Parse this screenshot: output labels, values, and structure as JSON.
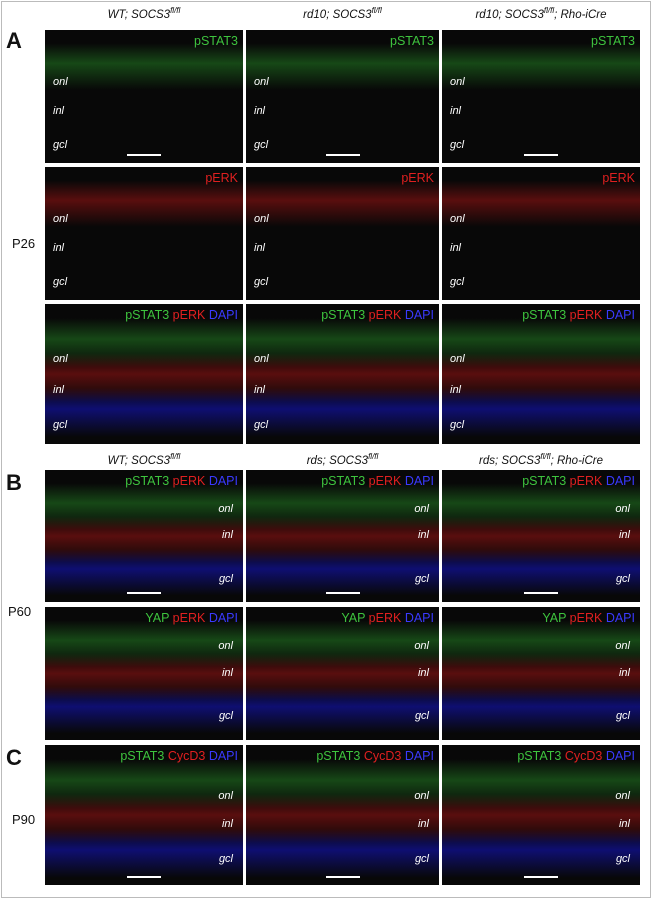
{
  "panels": [
    {
      "letter": "A",
      "row_label": "P26",
      "headers": [
        {
          "text": "WT; SOCS3",
          "sup": "fl/fl"
        },
        {
          "text": "rd10; SOCS3",
          "sup": "fl/fl"
        },
        {
          "text": "rd10; SOCS3",
          "sup": "fl/fl",
          "tail": "; Rho-iCre"
        }
      ],
      "rows": [
        {
          "tiles": [
            {
              "stain": [
                {
                  "text": "pSTAT3",
                  "color": "#3ec43e"
                }
              ],
              "layers": [
                "onl",
                "inl",
                "gcl"
              ]
            },
            {
              "stain": [
                {
                  "text": "pSTAT3",
                  "color": "#3ec43e"
                }
              ],
              "layers": [
                "onl",
                "inl",
                "gcl"
              ]
            },
            {
              "stain": [
                {
                  "text": "pSTAT3",
                  "color": "#3ec43e"
                }
              ],
              "layers": [
                "onl",
                "inl",
                "gcl"
              ]
            }
          ]
        },
        {
          "tiles": [
            {
              "stain": [
                {
                  "text": "pERK",
                  "color": "#e02020"
                }
              ],
              "layers": [
                "onl",
                "inl",
                "gcl"
              ]
            },
            {
              "stain": [
                {
                  "text": "pERK",
                  "color": "#e02020"
                }
              ],
              "layers": [
                "onl",
                "inl",
                "gcl"
              ]
            },
            {
              "stain": [
                {
                  "text": "pERK",
                  "color": "#e02020"
                }
              ],
              "layers": [
                "onl",
                "inl",
                "gcl"
              ]
            }
          ]
        },
        {
          "tiles": [
            {
              "stain": [
                {
                  "text": "pSTAT3",
                  "color": "#3ec43e"
                },
                {
                  "text": "pERK",
                  "color": "#e02020"
                },
                {
                  "text": "DAPI",
                  "color": "#3a3aff"
                }
              ],
              "layers": [
                "onl",
                "inl",
                "gcl"
              ]
            },
            {
              "stain": [
                {
                  "text": "pSTAT3",
                  "color": "#3ec43e"
                },
                {
                  "text": "pERK",
                  "color": "#e02020"
                },
                {
                  "text": "DAPI",
                  "color": "#3a3aff"
                }
              ],
              "layers": [
                "onl",
                "inl",
                "gcl"
              ]
            },
            {
              "stain": [
                {
                  "text": "pSTAT3",
                  "color": "#3ec43e"
                },
                {
                  "text": "pERK",
                  "color": "#e02020"
                },
                {
                  "text": "DAPI",
                  "color": "#3a3aff"
                }
              ],
              "layers": [
                "onl",
                "inl",
                "gcl"
              ]
            }
          ]
        }
      ]
    },
    {
      "letter": "B",
      "row_label": "P60",
      "headers": [
        {
          "text": "WT; SOCS3",
          "sup": "fl/fl"
        },
        {
          "text": "rds; SOCS3",
          "sup": "fl/fl"
        },
        {
          "text": "rds; SOCS3",
          "sup": "fl/fl",
          "tail": "; Rho-iCre"
        }
      ],
      "rows": [
        {
          "tiles": [
            {
              "stain": [
                {
                  "text": "pSTAT3",
                  "color": "#3ec43e"
                },
                {
                  "text": "pERK",
                  "color": "#e02020"
                },
                {
                  "text": "DAPI",
                  "color": "#3a3aff"
                }
              ],
              "layers": [
                "onl",
                "inl",
                "gcl"
              ]
            },
            {
              "stain": [
                {
                  "text": "pSTAT3",
                  "color": "#3ec43e"
                },
                {
                  "text": "pERK",
                  "color": "#e02020"
                },
                {
                  "text": "DAPI",
                  "color": "#3a3aff"
                }
              ],
              "layers": [
                "onl",
                "inl",
                "gcl"
              ]
            },
            {
              "stain": [
                {
                  "text": "pSTAT3",
                  "color": "#3ec43e"
                },
                {
                  "text": "pERK",
                  "color": "#e02020"
                },
                {
                  "text": "DAPI",
                  "color": "#3a3aff"
                }
              ],
              "layers": [
                "onl",
                "inl",
                "gcl"
              ]
            }
          ]
        },
        {
          "tiles": [
            {
              "stain": [
                {
                  "text": "YAP",
                  "color": "#3ec43e"
                },
                {
                  "text": "pERK",
                  "color": "#e02020"
                },
                {
                  "text": "DAPI",
                  "color": "#3a3aff"
                }
              ],
              "layers": [
                "onl",
                "inl",
                "gcl"
              ]
            },
            {
              "stain": [
                {
                  "text": "YAP",
                  "color": "#3ec43e"
                },
                {
                  "text": "pERK",
                  "color": "#e02020"
                },
                {
                  "text": "DAPI",
                  "color": "#3a3aff"
                }
              ],
              "layers": [
                "onl",
                "inl",
                "gcl"
              ]
            },
            {
              "stain": [
                {
                  "text": "YAP",
                  "color": "#3ec43e"
                },
                {
                  "text": "pERK",
                  "color": "#e02020"
                },
                {
                  "text": "DAPI",
                  "color": "#3a3aff"
                }
              ],
              "layers": [
                "onl",
                "inl",
                "gcl"
              ]
            }
          ]
        }
      ]
    },
    {
      "letter": "C",
      "row_label": "P90",
      "rows": [
        {
          "tiles": [
            {
              "stain": [
                {
                  "text": "pSTAT3",
                  "color": "#3ec43e"
                },
                {
                  "text": "CycD3",
                  "color": "#e02020"
                },
                {
                  "text": "DAPI",
                  "color": "#3a3aff"
                }
              ],
              "layers": [
                "onl",
                "inl",
                "gcl"
              ]
            },
            {
              "stain": [
                {
                  "text": "pSTAT3",
                  "color": "#3ec43e"
                },
                {
                  "text": "CycD3",
                  "color": "#e02020"
                },
                {
                  "text": "DAPI",
                  "color": "#3a3aff"
                }
              ],
              "layers": [
                "onl",
                "inl",
                "gcl"
              ]
            },
            {
              "stain": [
                {
                  "text": "pSTAT3",
                  "color": "#3ec43e"
                },
                {
                  "text": "CycD3",
                  "color": "#e02020"
                },
                {
                  "text": "DAPI",
                  "color": "#3a3aff"
                }
              ],
              "layers": [
                "onl",
                "inl",
                "gcl"
              ]
            }
          ]
        }
      ]
    }
  ]
}
